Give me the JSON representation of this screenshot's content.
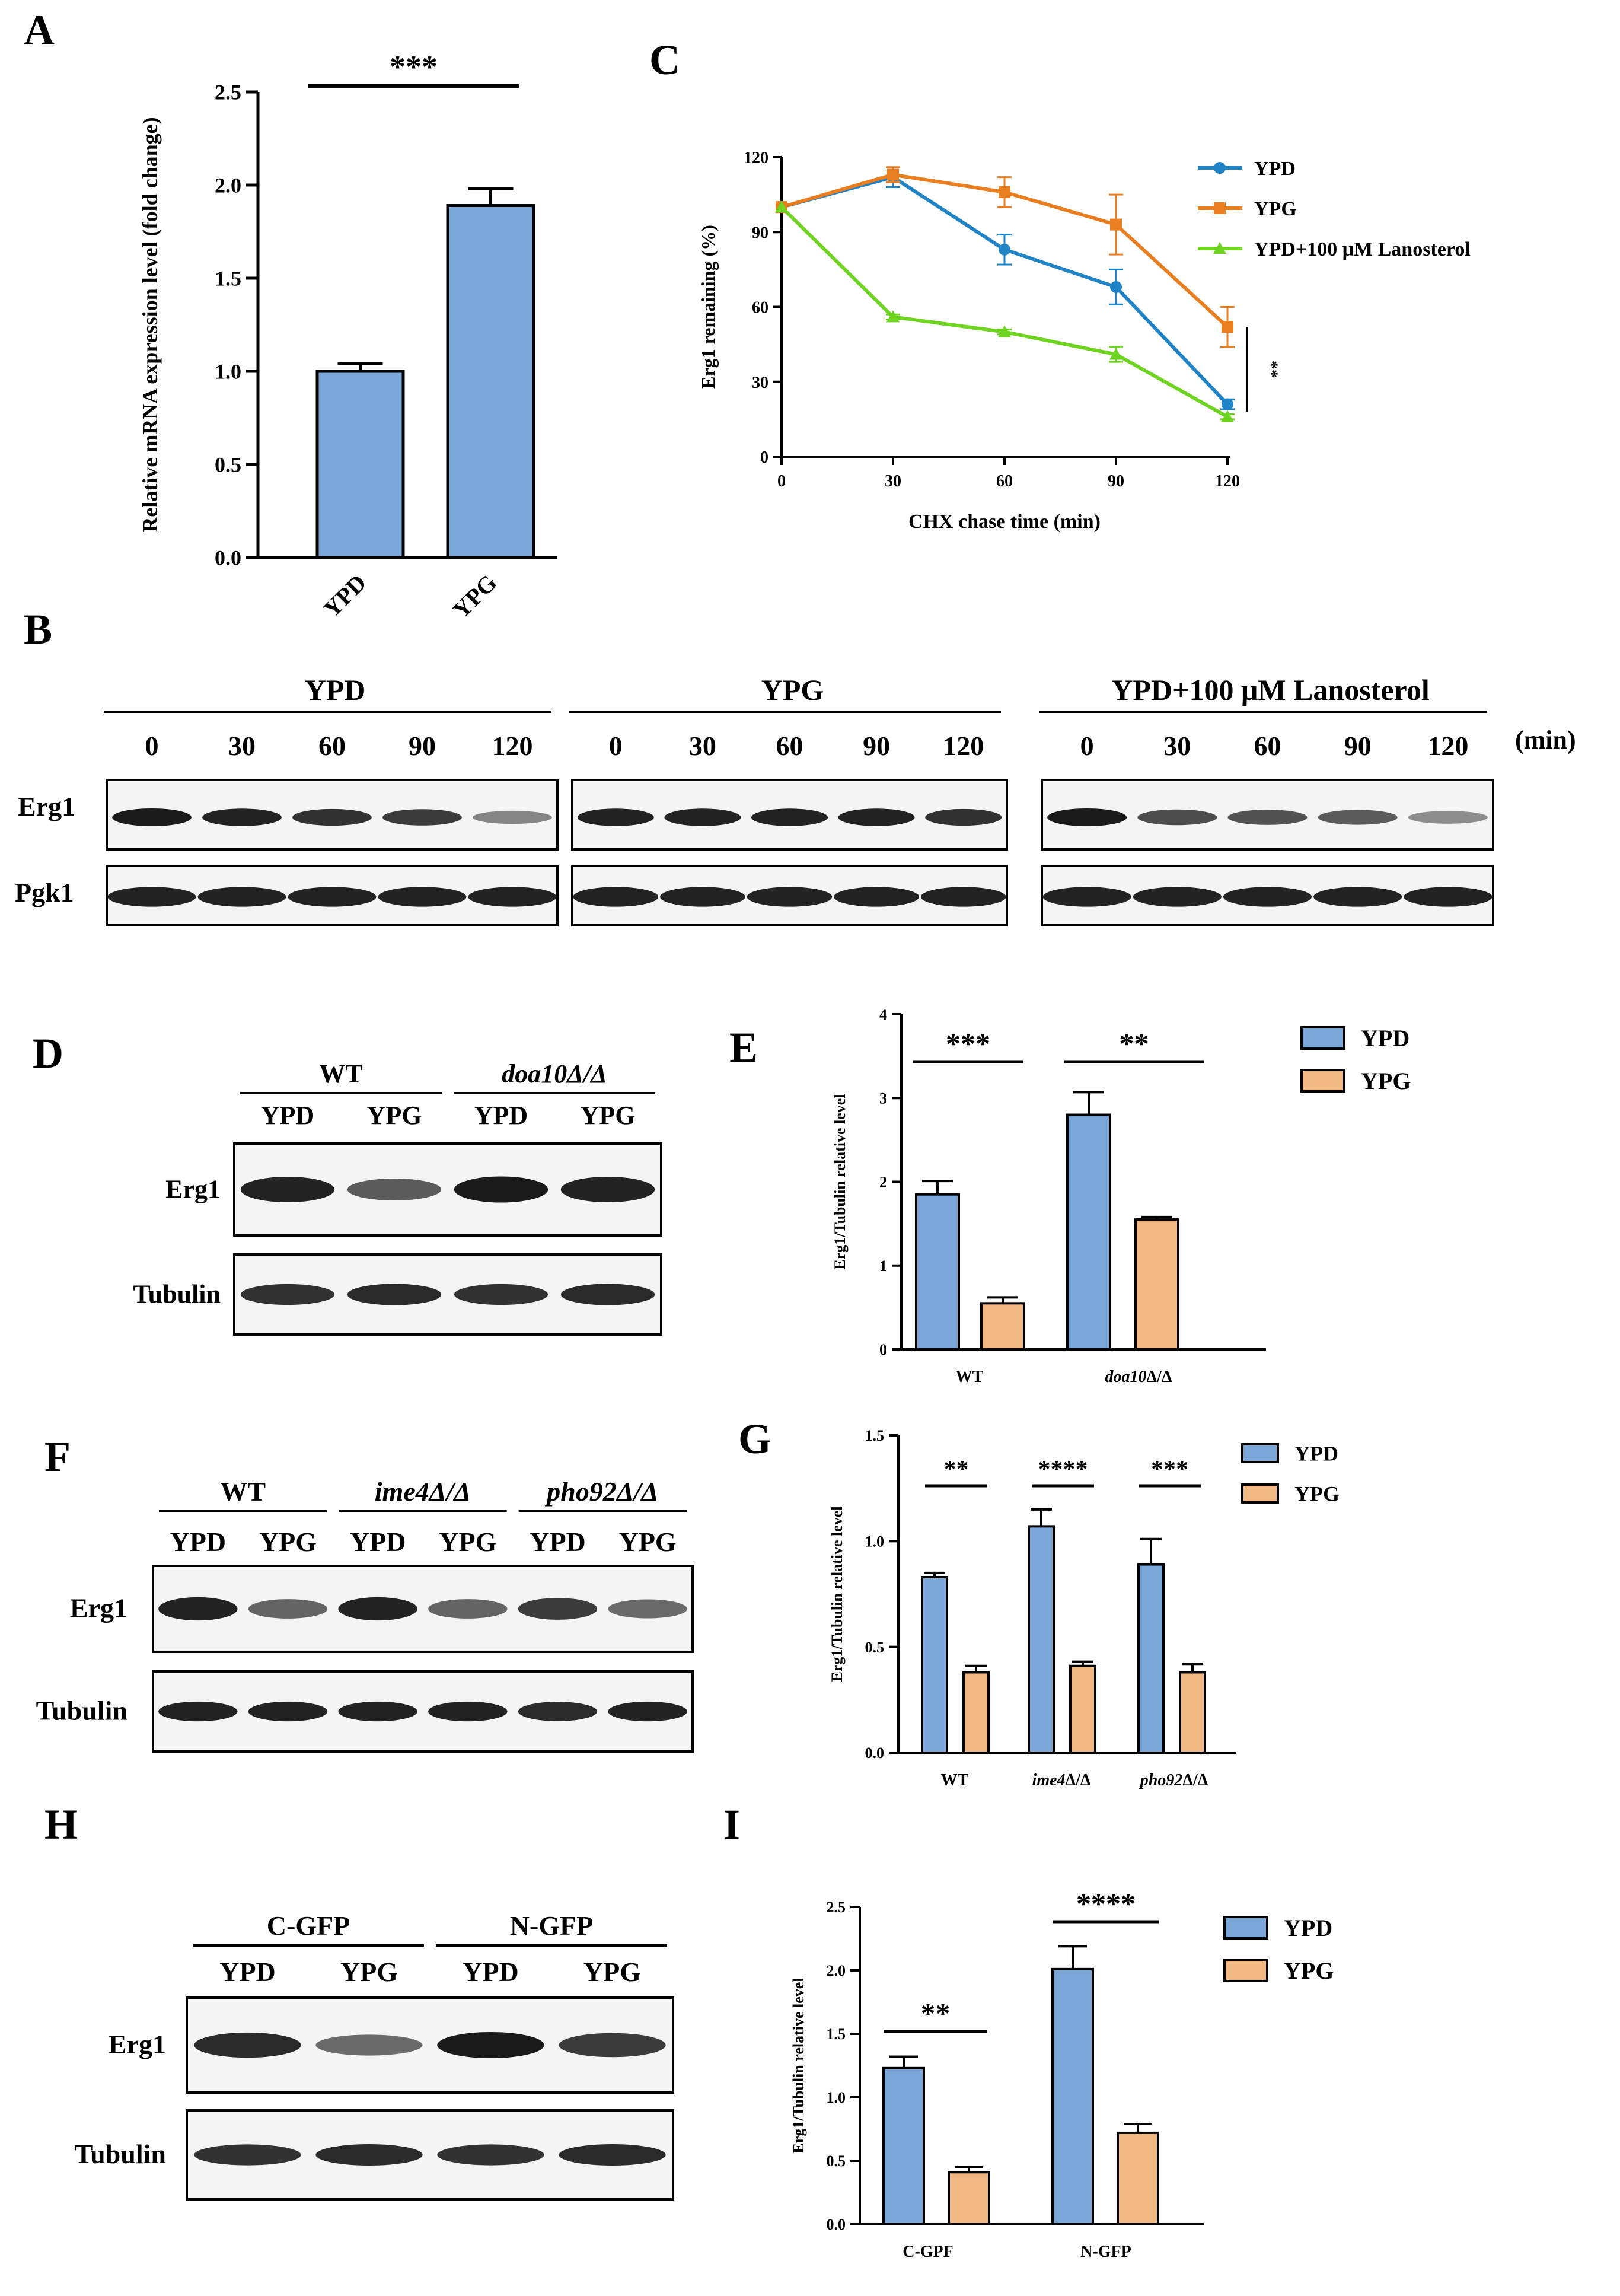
{
  "panel_letters": {
    "A": "A",
    "B": "B",
    "C": "C",
    "D": "D",
    "E": "E",
    "F": "F",
    "G": "G",
    "H": "H",
    "I": "I"
  },
  "colors": {
    "ypd_fill": "#7aa7d8",
    "ypg_fill": "#f0b983",
    "line_ypd": "#1f83c6",
    "line_ypg": "#e97e21",
    "line_lano": "#6ed321",
    "band": "#1a1a1a",
    "blot_bg": "#f4f4f4"
  },
  "chart_data": [
    {
      "panel": "A",
      "type": "bar",
      "categories": [
        "YPD",
        "YPG"
      ],
      "values": [
        1.0,
        1.89
      ],
      "errors": [
        0.04,
        0.09
      ],
      "ylabel": "Relative mRNA expression level (fold change)",
      "ylim": [
        0,
        2.5
      ],
      "yticks": [
        "0.0",
        "0.5",
        "1.0",
        "1.5",
        "2.0",
        "2.5"
      ],
      "significance": [
        {
          "label": "***"
        }
      ]
    },
    {
      "panel": "C",
      "type": "line",
      "x": [
        0,
        30,
        60,
        90,
        120
      ],
      "series": [
        {
          "name": "YPD",
          "values": [
            100,
            112,
            83,
            68,
            21
          ],
          "errors": [
            0,
            4,
            6,
            7,
            2
          ],
          "marker": "circle"
        },
        {
          "name": "YPG",
          "values": [
            100,
            113,
            106,
            93,
            52
          ],
          "errors": [
            0,
            3,
            6,
            12,
            8
          ],
          "marker": "square"
        },
        {
          "name": "YPD+100 μM Lanosterol",
          "values": [
            100,
            56,
            50,
            41,
            16
          ],
          "errors": [
            0,
            1,
            1,
            3,
            1
          ],
          "marker": "triangle"
        }
      ],
      "xlabel": "CHX chase time (min)",
      "ylabel": "Erg1 remaining (%)",
      "xlim": [
        0,
        120
      ],
      "ylim": [
        0,
        120
      ],
      "xticks": [
        "0",
        "30",
        "60",
        "90",
        "120"
      ],
      "yticks": [
        "0",
        "30",
        "60",
        "90",
        "120"
      ],
      "legend_position": "top-right",
      "significance": [
        {
          "label": "**"
        }
      ]
    },
    {
      "panel": "E",
      "type": "bar",
      "categories": [
        "WT",
        "doa10Δ/Δ"
      ],
      "series": [
        {
          "name": "YPD",
          "values": [
            1.85,
            2.8
          ],
          "errors": [
            0.16,
            0.27
          ]
        },
        {
          "name": "YPG",
          "values": [
            0.55,
            1.55
          ],
          "errors": [
            0.07,
            0.03
          ]
        }
      ],
      "ylabel": "Erg1/Tubulin relative  level",
      "ylim": [
        0,
        4
      ],
      "yticks": [
        "0",
        "1",
        "2",
        "3",
        "4"
      ],
      "legend_position": "top-right",
      "significance": [
        {
          "label": "***"
        },
        {
          "label": "**"
        }
      ]
    },
    {
      "panel": "G",
      "type": "bar",
      "categories": [
        "WT",
        "ime4Δ/Δ",
        "pho92Δ/Δ"
      ],
      "series": [
        {
          "name": "YPD",
          "values": [
            0.83,
            1.07,
            0.89
          ],
          "errors": [
            0.02,
            0.08,
            0.12
          ]
        },
        {
          "name": "YPG",
          "values": [
            0.38,
            0.41,
            0.38
          ],
          "errors": [
            0.03,
            0.02,
            0.04
          ]
        }
      ],
      "ylabel": "Erg1/Tubulin relative  level",
      "ylim": [
        0,
        1.5
      ],
      "yticks": [
        "0.0",
        "0.5",
        "1.0",
        "1.5"
      ],
      "legend_position": "top-right",
      "significance": [
        {
          "label": "**"
        },
        {
          "label": "****"
        },
        {
          "label": "***"
        }
      ]
    },
    {
      "panel": "I",
      "type": "bar",
      "categories": [
        "C-GPF",
        "N-GFP"
      ],
      "series": [
        {
          "name": "YPD",
          "values": [
            1.23,
            2.01
          ],
          "errors": [
            0.09,
            0.18
          ]
        },
        {
          "name": "YPG",
          "values": [
            0.41,
            0.72
          ],
          "errors": [
            0.04,
            0.07
          ]
        }
      ],
      "ylabel": "Erg1/Tubulin relative  level",
      "ylim": [
        0,
        2.5
      ],
      "yticks": [
        "0.0",
        "0.5",
        "1.0",
        "1.5",
        "2.0",
        "2.5"
      ],
      "legend_position": "top-right",
      "significance": [
        {
          "label": "**"
        },
        {
          "label": "****"
        }
      ]
    }
  ],
  "blots": {
    "B": {
      "groups": [
        "YPD",
        "YPG",
        "YPD+100 μM Lanosterol"
      ],
      "times": [
        "0",
        "30",
        "60",
        "90",
        "120"
      ],
      "unit": "(min)",
      "rows": [
        "Erg1",
        "Pgk1"
      ],
      "erg1_intensity": [
        [
          1,
          0.95,
          0.85,
          0.8,
          0.35
        ],
        [
          0.95,
          0.95,
          0.95,
          0.95,
          0.85
        ],
        [
          1,
          0.7,
          0.65,
          0.6,
          0.3
        ]
      ],
      "pgk1_intensity": [
        [
          0.95,
          0.95,
          0.95,
          0.95,
          0.95
        ],
        [
          0.95,
          0.95,
          0.95,
          0.95,
          0.95
        ],
        [
          0.95,
          0.95,
          0.95,
          0.95,
          0.95
        ]
      ]
    },
    "D": {
      "groups": [
        "WT",
        "doa10Δ/Δ"
      ],
      "lanes": [
        "YPD",
        "YPG",
        "YPD",
        "YPG"
      ],
      "rows": [
        "Erg1",
        "Tubulin"
      ],
      "erg1_intensity": [
        0.95,
        0.6,
        1,
        0.95
      ],
      "tubulin_intensity": [
        0.85,
        0.9,
        0.85,
        0.9
      ]
    },
    "F": {
      "groups": [
        "WT",
        "ime4Δ/Δ",
        "pho92Δ/Δ"
      ],
      "lanes": [
        "YPD",
        "YPG",
        "YPD",
        "YPG",
        "YPD",
        "YPG"
      ],
      "rows": [
        "Erg1",
        "Tubulin"
      ],
      "erg1_intensity": [
        0.95,
        0.55,
        0.95,
        0.55,
        0.8,
        0.5
      ],
      "tubulin_intensity": [
        0.95,
        0.95,
        0.95,
        0.95,
        0.9,
        0.95
      ]
    },
    "H": {
      "groups": [
        "C-GFP",
        "N-GFP"
      ],
      "lanes": [
        "YPD",
        "YPG",
        "YPD",
        "YPG"
      ],
      "rows": [
        "Erg1",
        "Tubulin"
      ],
      "erg1_intensity": [
        0.9,
        0.5,
        1,
        0.8
      ],
      "tubulin_intensity": [
        0.85,
        0.9,
        0.85,
        0.9
      ]
    }
  }
}
